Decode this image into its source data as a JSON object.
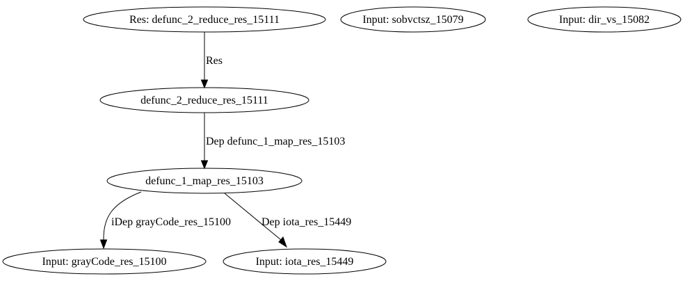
{
  "nodes": {
    "res_defunc_2": "Res: defunc_2_reduce_res_15111",
    "input_sobvctsz": "Input: sobvctsz_15079",
    "input_dir_vs": "Input: dir_vs_15082",
    "defunc_2": "defunc_2_reduce_res_15111",
    "defunc_1": "defunc_1_map_res_15103",
    "input_graycode": "Input: grayCode_res_15100",
    "input_iota": "Input: iota_res_15449"
  },
  "edges": {
    "res_to_defunc_2": "Res",
    "defunc_2_to_defunc_1": "Dep defunc_1_map_res_15103",
    "defunc_1_to_graycode": "iDep grayCode_res_15100",
    "defunc_1_to_iota": "Dep iota_res_15449"
  }
}
